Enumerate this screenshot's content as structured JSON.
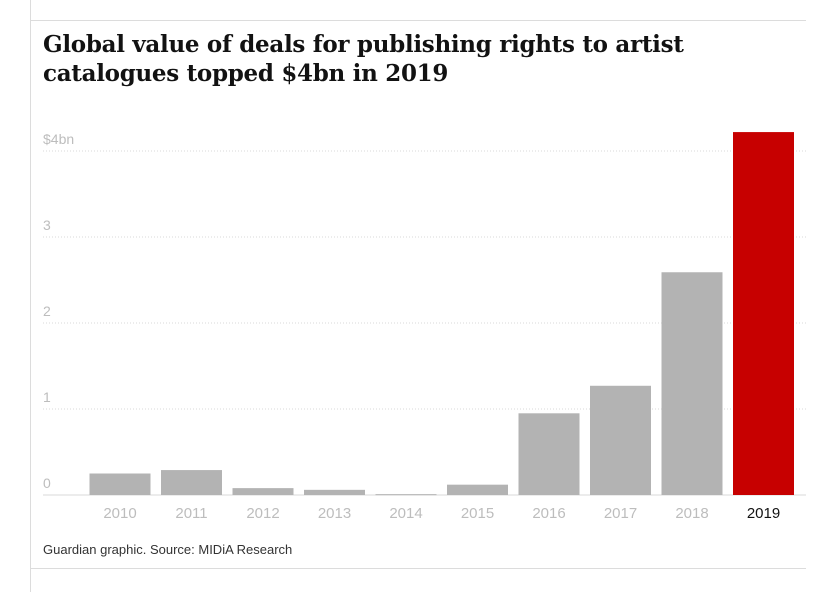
{
  "title": "Global value of deals for publishing rights to artist catalogues topped $4bn in 2019",
  "source": "Guardian graphic. Source: MIDiA Research",
  "chart_data": {
    "type": "bar",
    "title": "Global value of deals for publishing rights to artist catalogues topped $4bn in 2019",
    "xlabel": "",
    "ylabel": "",
    "unit": "$bn",
    "categories": [
      "2010",
      "2011",
      "2012",
      "2013",
      "2014",
      "2015",
      "2016",
      "2017",
      "2018",
      "2019"
    ],
    "values": [
      0.25,
      0.29,
      0.08,
      0.06,
      0.01,
      0.12,
      0.95,
      1.27,
      2.59,
      4.22
    ],
    "highlight_index": 9,
    "ylim": [
      0,
      4
    ],
    "yticks": [
      {
        "value": 0,
        "label": "0"
      },
      {
        "value": 1,
        "label": "1"
      },
      {
        "value": 2,
        "label": "2"
      },
      {
        "value": 3,
        "label": "3"
      },
      {
        "value": 4,
        "label": "$4bn"
      }
    ],
    "grid": true,
    "colors": {
      "bar": "#b3b3b3",
      "highlight": "#c70000",
      "grid": "#d9d9d9",
      "tick_label": "#bdbdbd",
      "highlight_label": "#121212"
    }
  }
}
